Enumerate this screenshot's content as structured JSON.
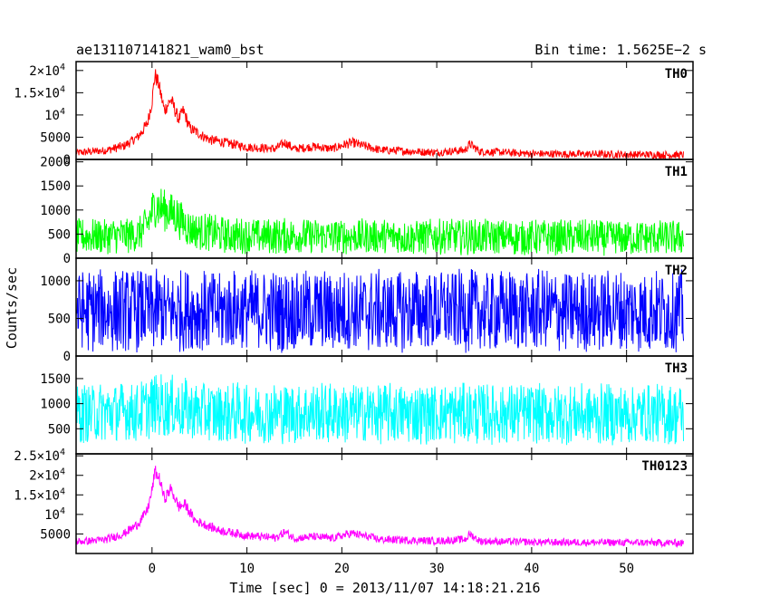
{
  "header": {
    "left": "ae131107141821_wam0_bst",
    "right": "Bin time: 1.5625E−2 s"
  },
  "axes": {
    "xlabel": "Time [sec] 0 = 2013/11/07 14:18:21.216",
    "ylabel": "Counts/sec"
  },
  "chart_data": {
    "type": "line",
    "xlim": [
      -8,
      57
    ],
    "x_ticks": [
      "0",
      "10",
      "20",
      "30",
      "40",
      "50"
    ],
    "x_tick_values": [
      0,
      10,
      20,
      30,
      40,
      50
    ],
    "x_range_data": [
      -8,
      56
    ],
    "panels": [
      {
        "name": "TH0",
        "color": "#ff0000",
        "ylim": [
          0,
          22000
        ],
        "y_ticks": [
          {
            "value": 0,
            "label": "0"
          },
          {
            "value": 5000,
            "label": "5000"
          },
          {
            "value": 10000,
            "label": "10",
            "exp": "4"
          },
          {
            "value": 15000,
            "label": "1.5×10",
            "exp": "4"
          },
          {
            "value": 20000,
            "label": "2×10",
            "exp": "4"
          }
        ],
        "profile": [
          [
            -8,
            1500
          ],
          [
            -5,
            2000
          ],
          [
            -3,
            3000
          ],
          [
            -1.5,
            5000
          ],
          [
            -0.5,
            8000
          ],
          [
            0,
            13000
          ],
          [
            0.3,
            19000
          ],
          [
            0.7,
            17000
          ],
          [
            1.3,
            11000
          ],
          [
            2,
            13500
          ],
          [
            2.8,
            9000
          ],
          [
            3.3,
            11000
          ],
          [
            4,
            7000
          ],
          [
            6,
            4500
          ],
          [
            10,
            2800
          ],
          [
            13,
            2400
          ],
          [
            14,
            3800
          ],
          [
            15,
            2300
          ],
          [
            17,
            2900
          ],
          [
            19,
            2400
          ],
          [
            21,
            3800
          ],
          [
            24,
            2100
          ],
          [
            30,
            1600
          ],
          [
            33,
            2100
          ],
          [
            33.5,
            3500
          ],
          [
            34.5,
            1800
          ],
          [
            40,
            1300
          ],
          [
            50,
            1100
          ],
          [
            56,
            1000
          ]
        ],
        "noise": 900
      },
      {
        "name": "TH1",
        "color": "#00ff00",
        "ylim": [
          0,
          2050
        ],
        "y_ticks": [
          {
            "value": 0,
            "label": "0"
          },
          {
            "value": 500,
            "label": "500"
          },
          {
            "value": 1000,
            "label": "1000"
          },
          {
            "value": 1500,
            "label": "1500"
          },
          {
            "value": 2000,
            "label": "2000"
          }
        ],
        "profile": [
          [
            -8,
            450
          ],
          [
            -1.5,
            480
          ],
          [
            -0.5,
            700
          ],
          [
            0.3,
            1100
          ],
          [
            1.5,
            1000
          ],
          [
            2.5,
            900
          ],
          [
            4,
            600
          ],
          [
            8,
            470
          ],
          [
            20,
            450
          ],
          [
            56,
            420
          ]
        ],
        "noise": 380
      },
      {
        "name": "TH2",
        "color": "#0000ff",
        "ylim": [
          0,
          1300
        ],
        "y_ticks": [
          {
            "value": 0,
            "label": "0"
          },
          {
            "value": 500,
            "label": "500"
          },
          {
            "value": 1000,
            "label": "1000"
          }
        ],
        "profile": [
          [
            -8,
            600
          ],
          [
            56,
            600
          ]
        ],
        "noise": 560
      },
      {
        "name": "TH3",
        "color": "#00ffff",
        "ylim": [
          0,
          1950
        ],
        "y_ticks": [
          {
            "value": 500,
            "label": "500"
          },
          {
            "value": 1000,
            "label": "1000"
          },
          {
            "value": 1500,
            "label": "1500"
          }
        ],
        "profile": [
          [
            -8,
            800
          ],
          [
            -1,
            850
          ],
          [
            0.5,
            1000
          ],
          [
            3,
            900
          ],
          [
            6,
            820
          ],
          [
            56,
            780
          ]
        ],
        "noise": 620
      },
      {
        "name": "TH0123",
        "color": "#ff00ff",
        "ylim": [
          0,
          25500
        ],
        "y_ticks": [
          {
            "value": 5000,
            "label": "5000"
          },
          {
            "value": 10000,
            "label": "10",
            "exp": "4"
          },
          {
            "value": 15000,
            "label": "1.5×10",
            "exp": "4"
          },
          {
            "value": 20000,
            "label": "2×10",
            "exp": "4"
          },
          {
            "value": 25000,
            "label": "2.5×10",
            "exp": "4"
          }
        ],
        "profile": [
          [
            -8,
            3000
          ],
          [
            -5,
            3500
          ],
          [
            -3,
            5000
          ],
          [
            -1.5,
            7500
          ],
          [
            -0.5,
            11000
          ],
          [
            0,
            16000
          ],
          [
            0.3,
            21000
          ],
          [
            0.8,
            19000
          ],
          [
            1.3,
            14000
          ],
          [
            2,
            16500
          ],
          [
            2.8,
            12000
          ],
          [
            3.5,
            12500
          ],
          [
            4.5,
            8500
          ],
          [
            7,
            6000
          ],
          [
            10,
            4600
          ],
          [
            13,
            4000
          ],
          [
            14,
            5500
          ],
          [
            15,
            3900
          ],
          [
            17,
            4300
          ],
          [
            19,
            3900
          ],
          [
            21,
            5200
          ],
          [
            24,
            3600
          ],
          [
            30,
            3200
          ],
          [
            33,
            3600
          ],
          [
            33.5,
            5000
          ],
          [
            34.5,
            3200
          ],
          [
            40,
            2900
          ],
          [
            50,
            2800
          ],
          [
            56,
            2700
          ]
        ],
        "noise": 1000
      }
    ]
  }
}
